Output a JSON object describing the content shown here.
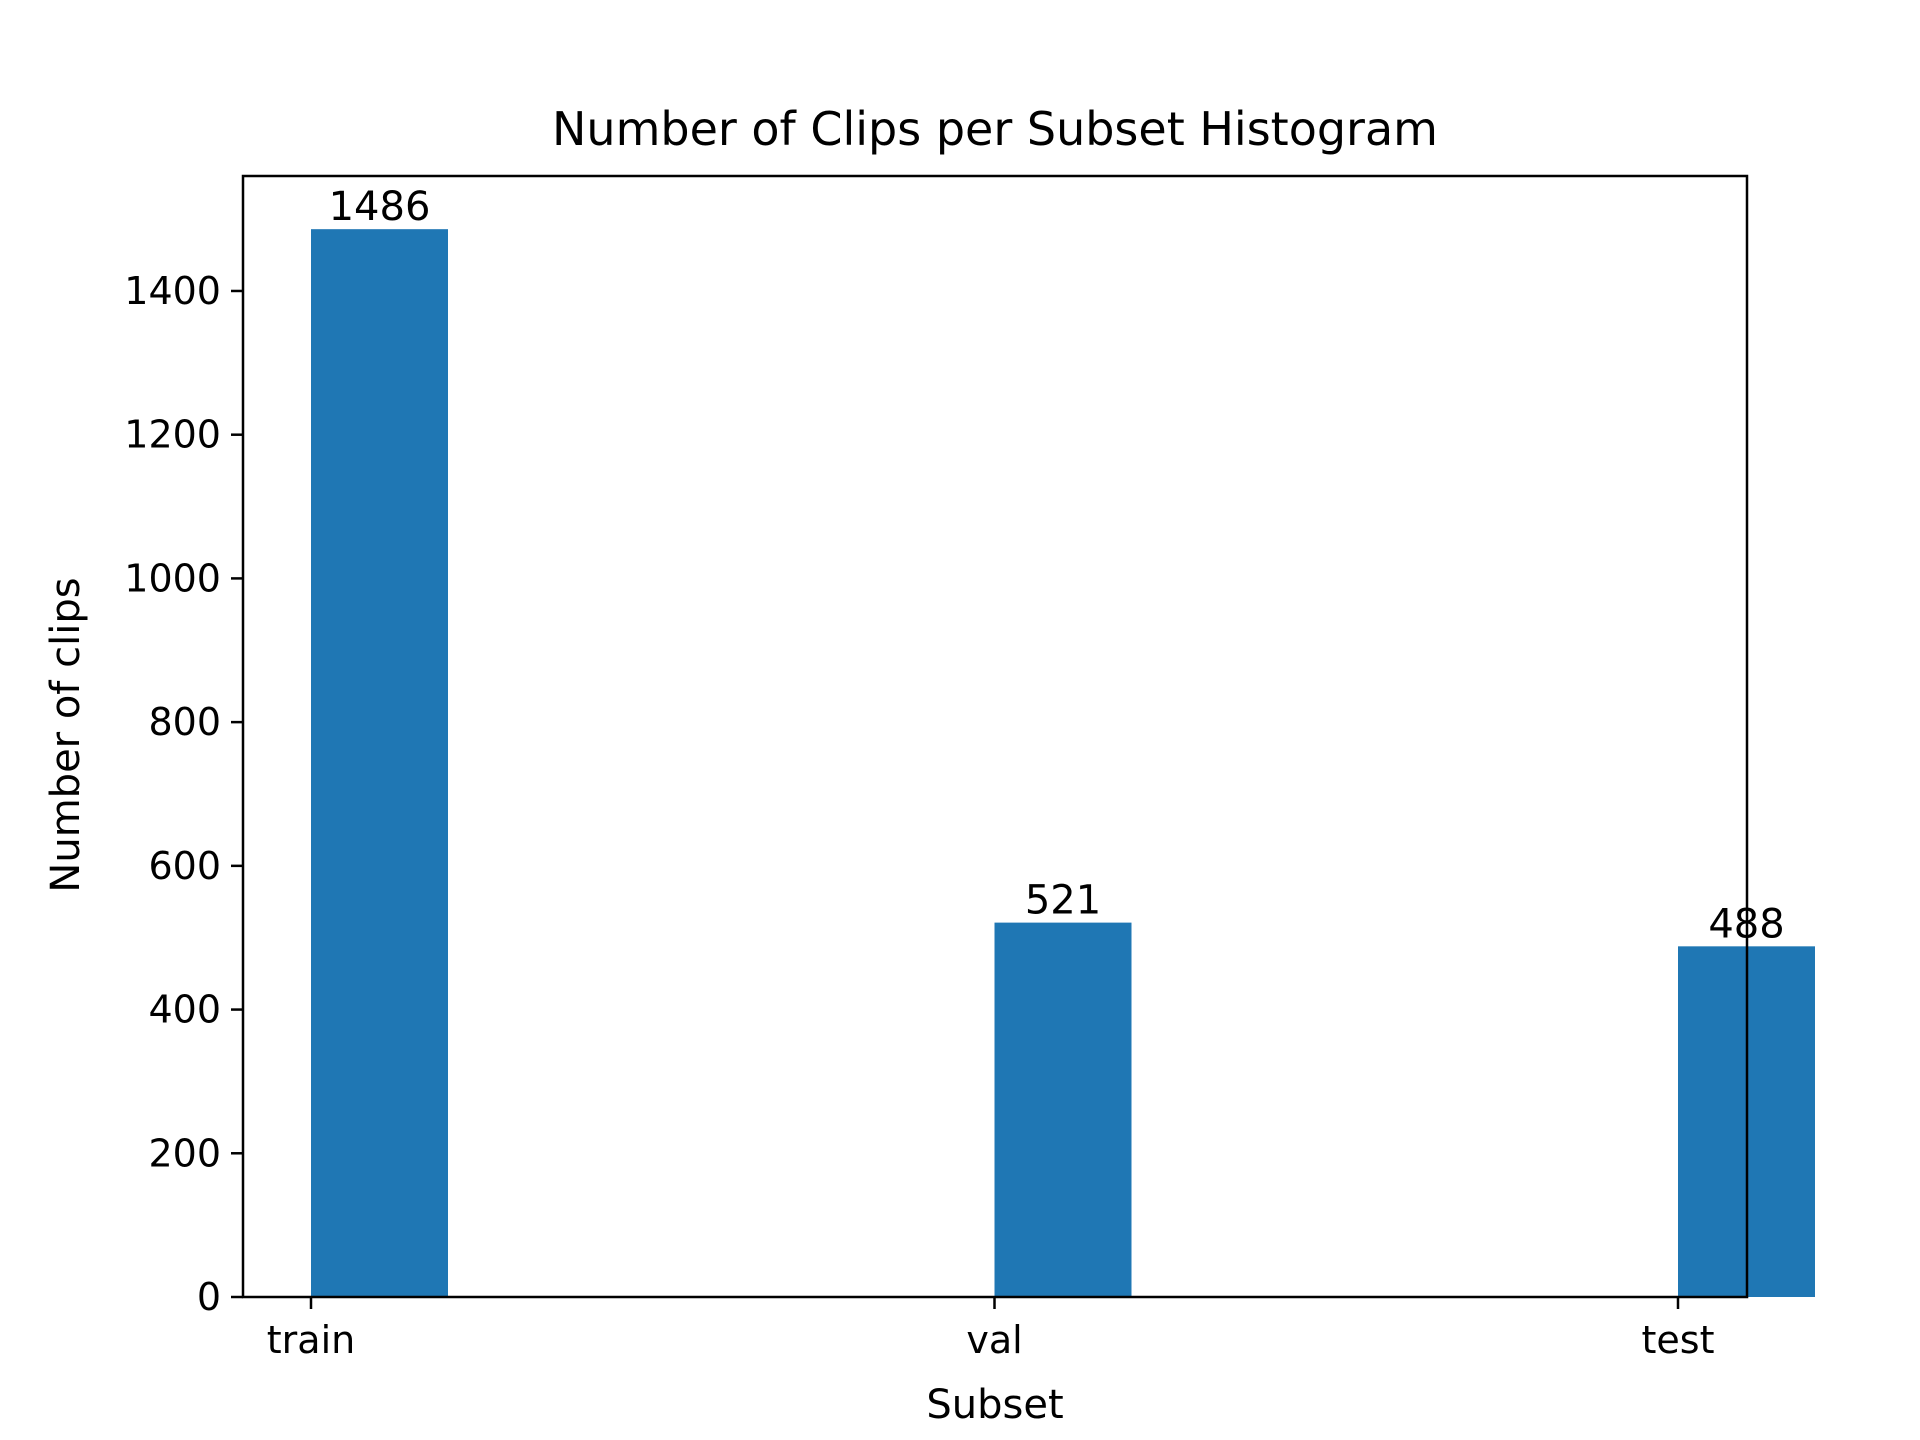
{
  "chart_data": {
    "type": "bar",
    "title": "Number of Clips per Subset Histogram",
    "xlabel": "Subset",
    "ylabel": "Number of clips",
    "categories": [
      "train",
      "val",
      "test"
    ],
    "values": [
      1486,
      521,
      488
    ],
    "data_labels": [
      "1486",
      "521",
      "488"
    ],
    "ylim": [
      0,
      1560
    ],
    "yticks": [
      0,
      200,
      400,
      600,
      800,
      1000,
      1200,
      1400
    ],
    "bar_color": "#1f77b4",
    "grid": false,
    "legend": "none"
  }
}
